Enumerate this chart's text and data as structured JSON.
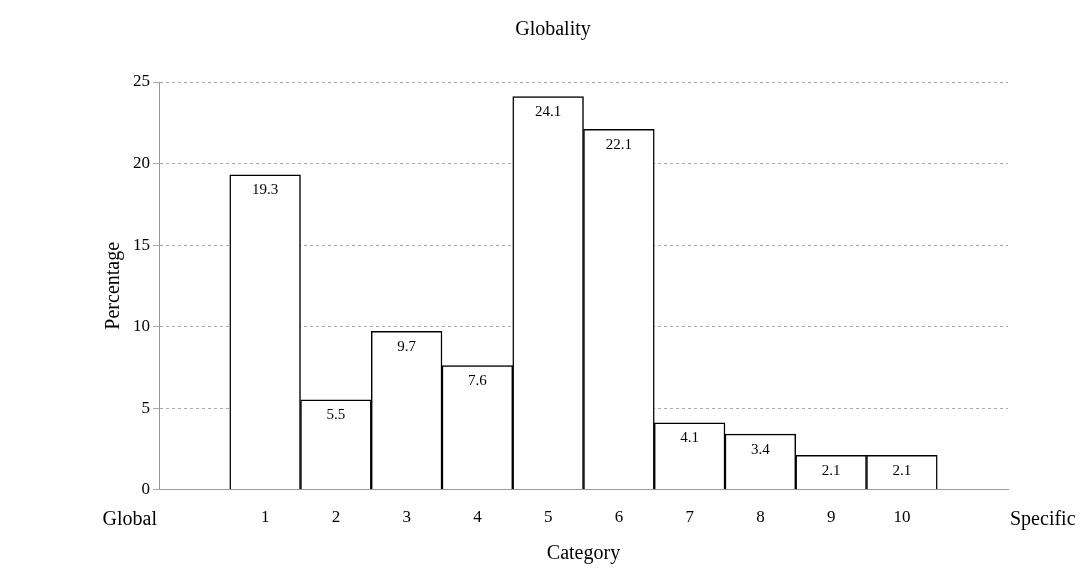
{
  "chart_data": {
    "type": "bar",
    "title": "Globality",
    "xlabel": "Category",
    "ylabel": "Percentage",
    "categories": [
      null,
      "1",
      "2",
      "3",
      "4",
      "5",
      "6",
      "7",
      "8",
      "9",
      "10",
      null
    ],
    "values": [
      null,
      19.3,
      5.5,
      9.7,
      7.6,
      24.1,
      22.1,
      4.1,
      3.4,
      2.1,
      2.1,
      null
    ],
    "color": "#ffffff",
    "ylim": [
      0,
      25
    ],
    "yticks": [
      0,
      5,
      10,
      15,
      20,
      25
    ],
    "grid": "y",
    "data_labels": true,
    "legend": false,
    "annotations": [
      "Global",
      "Specific"
    ]
  }
}
